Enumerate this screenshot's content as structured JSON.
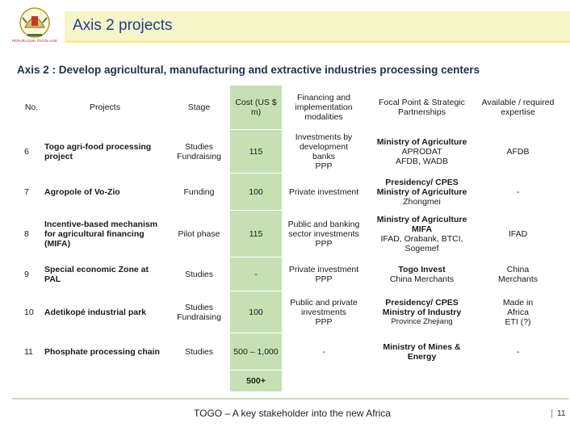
{
  "header": {
    "title": "Axis 2 projects",
    "logo_caption": "RÉPUBLIQUE TOGOLAISE"
  },
  "subtitle": "Axis 2 : Develop agricultural, manufacturing and extractive industries processing centers",
  "table": {
    "columns": [
      "No.",
      "Projects",
      "Stage",
      "Cost (US $ m)",
      "Financing and implementation modalities",
      "Focal Point & Strategic Partnerships",
      "Available / required expertise"
    ],
    "rows": [
      {
        "no": "6",
        "project": "Togo agri-food processing project",
        "stage": [
          "Studies",
          "Fundraising"
        ],
        "cost": "115",
        "financing": [
          "Investments by",
          "development",
          "banks",
          "PPP"
        ],
        "focal_bold": [
          "Ministry of Agriculture"
        ],
        "focal": [
          "APRODAT",
          "AFDB, WADB"
        ],
        "available": [
          "AFDB"
        ]
      },
      {
        "no": "7",
        "project": "Agropole of Vo-Zio",
        "stage": [
          "Funding"
        ],
        "cost": "100",
        "financing": [
          "Private investment"
        ],
        "focal_bold": [
          "Presidency/ CPES",
          "Ministry of Agriculture"
        ],
        "focal": [
          "Zhongmei"
        ],
        "available": [
          "-"
        ]
      },
      {
        "no": "8",
        "project": "Incentive-based mechanism for agricultural financing (MIFA)",
        "stage": [
          "Pilot phase"
        ],
        "cost": "115",
        "financing": [
          "Public and banking",
          "sector investments",
          "PPP"
        ],
        "focal_bold": [
          "Ministry of Agriculture",
          "MIFA"
        ],
        "focal": [
          "IFAD, Orabank, BTCI,",
          "Sogemef"
        ],
        "available": [
          "IFAD"
        ]
      },
      {
        "no": "9",
        "project": "Special economic Zone at PAL",
        "stage": [
          "Studies"
        ],
        "cost": "-",
        "financing": [
          "Private investment",
          "PPP"
        ],
        "focal_bold": [
          "Togo Invest"
        ],
        "focal": [
          "China Merchants"
        ],
        "available": [
          "China",
          "Merchants"
        ]
      },
      {
        "no": "10",
        "project": "Adetikopé industrial park",
        "stage": [
          "Studies",
          "Fundraising"
        ],
        "cost": "100",
        "financing": [
          "Public and private",
          "investments",
          "PPP"
        ],
        "focal_bold": [
          "Presidency/ CPES",
          "Ministry of Industry"
        ],
        "focal_small": [
          "Province Zhejiang"
        ],
        "available": [
          "Made in",
          "Africa",
          "ETI (?)"
        ]
      },
      {
        "no": "11",
        "project": "Phosphate processing chain",
        "stage": [
          "Studies"
        ],
        "cost": "500 – 1,000",
        "financing": [
          "-"
        ],
        "focal_bold": [
          "Ministry of Mines &",
          "Energy"
        ],
        "focal": [],
        "available": [
          "-"
        ]
      }
    ],
    "total": "500+"
  },
  "footer": {
    "text": "TOGO – A key stakeholder into the new Africa",
    "page": "11"
  },
  "colors": {
    "title": "#1e3f8a",
    "title_band": "#f6f4c9",
    "cost_column": "#c6e0b4",
    "footer_rule": "#c6e0b4"
  }
}
